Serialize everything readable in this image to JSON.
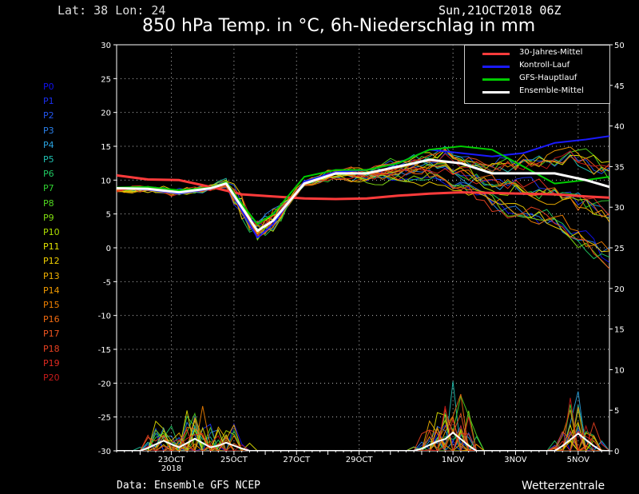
{
  "header": {
    "latlon": "Lat: 38 Lon: 24",
    "datestamp": "Sun,21OCT2018 06Z",
    "title": "850 hPa Temp. in °C, 6h-Niederschlag in mm"
  },
  "footer": {
    "source": "Data: Ensemble GFS NCEP",
    "brand": "Wetterzentrale"
  },
  "legend": [
    {
      "label": "30-Jahres-Mittel",
      "color": "#ff3b3b"
    },
    {
      "label": "Kontroll-Lauf",
      "color": "#1a1aff"
    },
    {
      "label": "GFS-Hauptlauf",
      "color": "#00cc00"
    },
    {
      "label": "Ensemble-Mittel",
      "color": "#ffffff"
    }
  ],
  "members": [
    {
      "label": "P0",
      "color": "#1010ee"
    },
    {
      "label": "P1",
      "color": "#1a2ff0"
    },
    {
      "label": "P2",
      "color": "#2255ee"
    },
    {
      "label": "P3",
      "color": "#2a7fe8"
    },
    {
      "label": "P4",
      "color": "#2aa3e0"
    },
    {
      "label": "P5",
      "color": "#20c0b0"
    },
    {
      "label": "P6",
      "color": "#20c860"
    },
    {
      "label": "P7",
      "color": "#30d030"
    },
    {
      "label": "P8",
      "color": "#50d820"
    },
    {
      "label": "P9",
      "color": "#80dc10"
    },
    {
      "label": "P10",
      "color": "#b0e000"
    },
    {
      "label": "P11",
      "color": "#e0e000"
    },
    {
      "label": "P12",
      "color": "#f0d000"
    },
    {
      "label": "P13",
      "color": "#f0b000"
    },
    {
      "label": "P14",
      "color": "#f09a00"
    },
    {
      "label": "P15",
      "color": "#f08000"
    },
    {
      "label": "P16",
      "color": "#f06a10"
    },
    {
      "label": "P17",
      "color": "#f05520"
    },
    {
      "label": "P18",
      "color": "#e84020"
    },
    {
      "label": "P19",
      "color": "#e02a20"
    },
    {
      "label": "P20",
      "color": "#c81a1a"
    }
  ],
  "chart_data": {
    "type": "line",
    "title": "850 hPa Temp. in °C, 6h-Niederschlag in mm",
    "x_unit": "days since 21OCT2018 06Z",
    "xlim": [
      0,
      15.75
    ],
    "ylim_left": [
      -30,
      30
    ],
    "ylim_right": [
      0,
      50
    ],
    "yticks_left": [
      30,
      25,
      20,
      15,
      10,
      5,
      0,
      -5,
      -10,
      -15,
      -20,
      -25,
      -30
    ],
    "yticks_right": [
      50,
      45,
      40,
      35,
      30,
      25,
      20,
      15,
      10,
      5,
      0
    ],
    "x_ticks": [
      {
        "x": 1.75,
        "label": "23OCT",
        "sublabel": "2018"
      },
      {
        "x": 3.75,
        "label": "25OCT"
      },
      {
        "x": 5.75,
        "label": "27OCT"
      },
      {
        "x": 7.75,
        "label": "29OCT"
      },
      {
        "x": 10.75,
        "label": "1NOV"
      },
      {
        "x": 12.75,
        "label": "3NOV"
      },
      {
        "x": 14.75,
        "label": "5NOV"
      }
    ],
    "grid": true,
    "legend_position": "top-right",
    "climatology": {
      "name": "30-Jahres-Mittel",
      "x": [
        0,
        1,
        2,
        3,
        4,
        5,
        6,
        7,
        8,
        9,
        10,
        11,
        12,
        13,
        14,
        15,
        15.75
      ],
      "y": [
        10.7,
        10.1,
        10.0,
        9.0,
        7.9,
        7.6,
        7.3,
        7.2,
        7.3,
        7.7,
        8.0,
        8.2,
        8.1,
        8.0,
        7.9,
        7.6,
        7.4
      ]
    },
    "ensemble_mean": {
      "name": "Ensemble-Mittel",
      "x": [
        0,
        1,
        2,
        3,
        3.5,
        4,
        4.5,
        5,
        6,
        7,
        8,
        9,
        10,
        11,
        12,
        13,
        14,
        15,
        15.75
      ],
      "y": [
        8.8,
        8.7,
        8.2,
        8.8,
        9.5,
        6.0,
        2.5,
        4.0,
        9.5,
        11.0,
        11.0,
        12.0,
        13.0,
        12.5,
        11.0,
        11.0,
        11.0,
        10.0,
        9.0
      ]
    },
    "control_run": {
      "name": "Kontroll-Lauf",
      "x": [
        0,
        1,
        2,
        3,
        3.5,
        4,
        4.5,
        5,
        6,
        7,
        8,
        9,
        10,
        11,
        12,
        13,
        14,
        15,
        15.75
      ],
      "y": [
        8.8,
        8.6,
        8.0,
        8.7,
        9.5,
        5.5,
        1.5,
        3.5,
        9.8,
        11.2,
        11.5,
        12.5,
        14.5,
        14.0,
        13.5,
        14.0,
        15.5,
        16.0,
        16.5
      ]
    },
    "gfs_main_run": {
      "name": "GFS-Hauptlauf",
      "x": [
        0,
        1,
        2,
        3,
        3.5,
        4,
        4.5,
        5,
        6,
        7,
        8,
        9,
        10,
        11,
        12,
        13,
        14,
        15,
        15.75
      ],
      "y": [
        8.9,
        9.0,
        8.5,
        8.9,
        9.7,
        6.5,
        3.5,
        5.0,
        10.5,
        11.5,
        11.5,
        12.5,
        14.5,
        15.0,
        14.5,
        12.0,
        9.5,
        10.0,
        10.5
      ]
    },
    "members_final_range": [
      -1.5,
      17.5
    ],
    "precip_peaks": [
      {
        "x": 1.5,
        "mm": 5
      },
      {
        "x": 2.5,
        "mm": 6
      },
      {
        "x": 3.5,
        "mm": 4
      },
      {
        "x": 10.3,
        "mm": 5
      },
      {
        "x": 10.75,
        "mm": 9
      },
      {
        "x": 14.75,
        "mm": 8.5
      }
    ]
  }
}
